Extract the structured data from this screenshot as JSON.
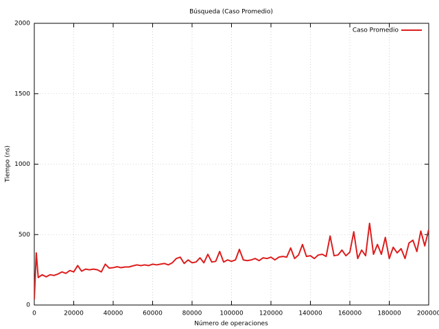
{
  "chart_data": {
    "type": "line",
    "title": "Búsqueda (Caso Promedio)",
    "x_label": "Número de operaciones",
    "y_label": "Tiempo (ns)",
    "x": [
      0,
      1000,
      2000,
      4000,
      6000,
      8000,
      10000,
      12000,
      14000,
      16000,
      18000,
      20000,
      22000,
      24000,
      26000,
      28000,
      30000,
      32000,
      34000,
      36000,
      38000,
      40000,
      42000,
      44000,
      46000,
      48000,
      50000,
      52000,
      54000,
      56000,
      58000,
      60000,
      62000,
      64000,
      66000,
      68000,
      70000,
      72000,
      74000,
      76000,
      78000,
      80000,
      82000,
      84000,
      86000,
      88000,
      90000,
      92000,
      94000,
      96000,
      98000,
      100000,
      102000,
      104000,
      106000,
      108000,
      110000,
      112000,
      114000,
      116000,
      118000,
      120000,
      122000,
      124000,
      126000,
      128000,
      130000,
      132000,
      134000,
      136000,
      138000,
      140000,
      142000,
      144000,
      146000,
      148000,
      150000,
      152000,
      154000,
      156000,
      158000,
      160000,
      162000,
      164000,
      166000,
      168000,
      170000,
      172000,
      174000,
      176000,
      178000,
      180000,
      182000,
      184000,
      186000,
      188000,
      190000,
      192000,
      194000,
      196000,
      198000,
      200000
    ],
    "series": [
      {
        "name": "Caso Promedio",
        "color": "#dd1c1c",
        "values": [
          40,
          370,
          195,
          215,
          200,
          215,
          210,
          220,
          235,
          225,
          245,
          235,
          280,
          240,
          255,
          250,
          255,
          250,
          235,
          290,
          262,
          265,
          272,
          265,
          270,
          270,
          278,
          285,
          280,
          285,
          280,
          290,
          285,
          290,
          295,
          285,
          300,
          330,
          340,
          295,
          320,
          300,
          305,
          335,
          300,
          360,
          305,
          310,
          380,
          305,
          320,
          310,
          320,
          395,
          320,
          315,
          320,
          330,
          315,
          335,
          330,
          340,
          320,
          340,
          345,
          340,
          405,
          330,
          355,
          430,
          345,
          350,
          330,
          355,
          360,
          345,
          490,
          350,
          355,
          390,
          350,
          375,
          520,
          330,
          390,
          350,
          580,
          360,
          430,
          360,
          480,
          330,
          410,
          370,
          400,
          330,
          440,
          460,
          380,
          525,
          420,
          535
        ]
      }
    ],
    "xlim": [
      0,
      200000
    ],
    "ylim": [
      0,
      2000
    ],
    "xticks": [
      0,
      20000,
      40000,
      60000,
      80000,
      100000,
      120000,
      140000,
      160000,
      180000,
      200000
    ],
    "yticks": [
      0,
      500,
      1000,
      1500,
      2000
    ],
    "grid": true,
    "legend": "top-right"
  }
}
